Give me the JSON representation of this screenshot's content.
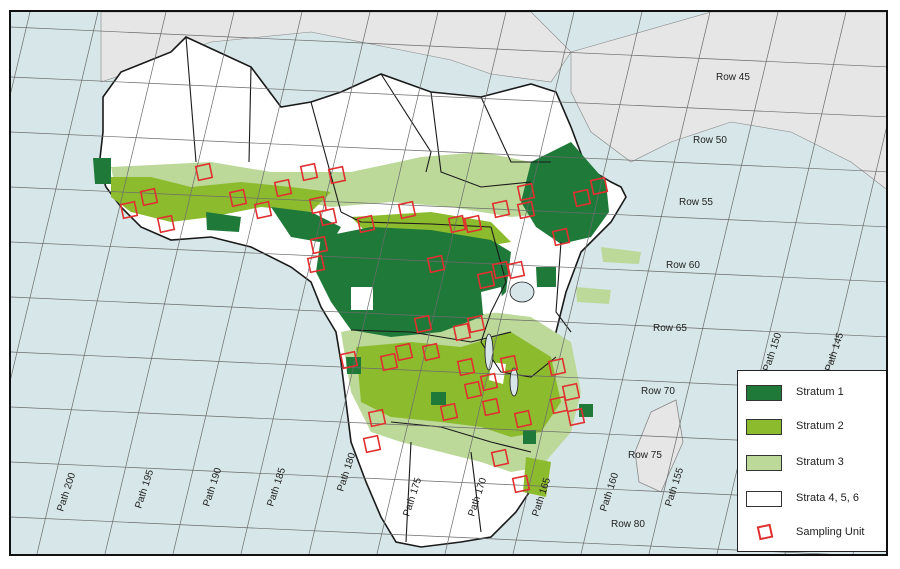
{
  "colors": {
    "ocean": "#d7e6e8",
    "land_outside": "#e6e6e6",
    "land_africa": "#ffffff",
    "stratum1": "#1f7a3a",
    "stratum2": "#8dbb2e",
    "stratum3": "#bcd99a",
    "strata456": "#ffffff",
    "sampling_unit": "#e03030",
    "border": "#1a1a1a",
    "grid": "#6b6b6b"
  },
  "rows": [
    "Row 45",
    "Row 50",
    "Row 55",
    "Row 60",
    "Row 65",
    "Row 70",
    "Row 75",
    "Row 80"
  ],
  "paths": [
    "Path 200",
    "Path 195",
    "Path 190",
    "Path 185",
    "Path 180",
    "Path 175",
    "Path 170",
    "Path 165",
    "Path 160",
    "Path 155",
    "Path 150",
    "Path 145"
  ],
  "legend": {
    "items": [
      {
        "label": "Stratum 1",
        "swatch": "stratum1"
      },
      {
        "label": "Stratum 2",
        "swatch": "stratum2"
      },
      {
        "label": "Stratum 3",
        "swatch": "stratum3"
      },
      {
        "label": "Strata 4, 5, 6",
        "swatch": "strata456"
      },
      {
        "label": "Sampling Unit",
        "swatch": "sampling_unit"
      }
    ]
  }
}
